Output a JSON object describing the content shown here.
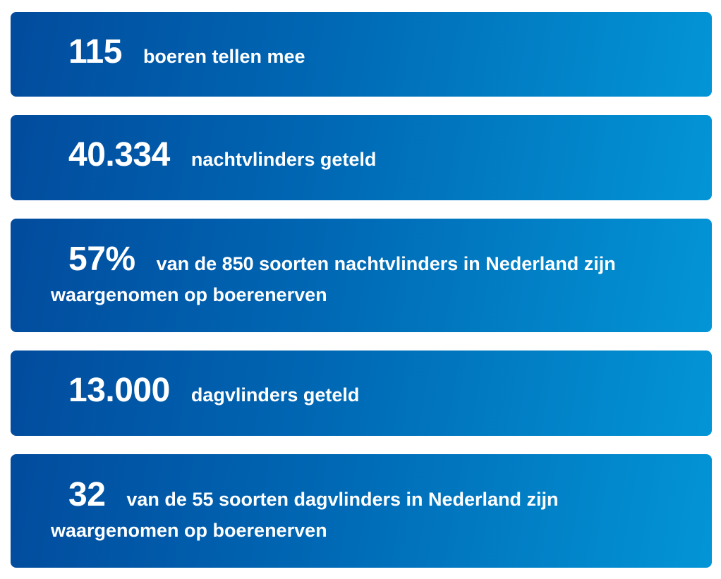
{
  "stats": [
    {
      "number": "115",
      "label": "boeren tellen mee"
    },
    {
      "number": "40.334",
      "label": "nachtvlinders geteld"
    },
    {
      "number": "57%",
      "label": "van de 850 soorten nachtvlinders in Nederland zijn waargenomen op boerenerven"
    },
    {
      "number": "13.000",
      "label": "dagvlinders geteld"
    },
    {
      "number": "32",
      "label": "van de 55 soorten dagvlinders in Nederland zijn waargenomen op boerenerven"
    }
  ],
  "colors": {
    "card_gradient_start": "#024b9d",
    "card_gradient_end": "#0395d6",
    "text": "#ffffff"
  }
}
